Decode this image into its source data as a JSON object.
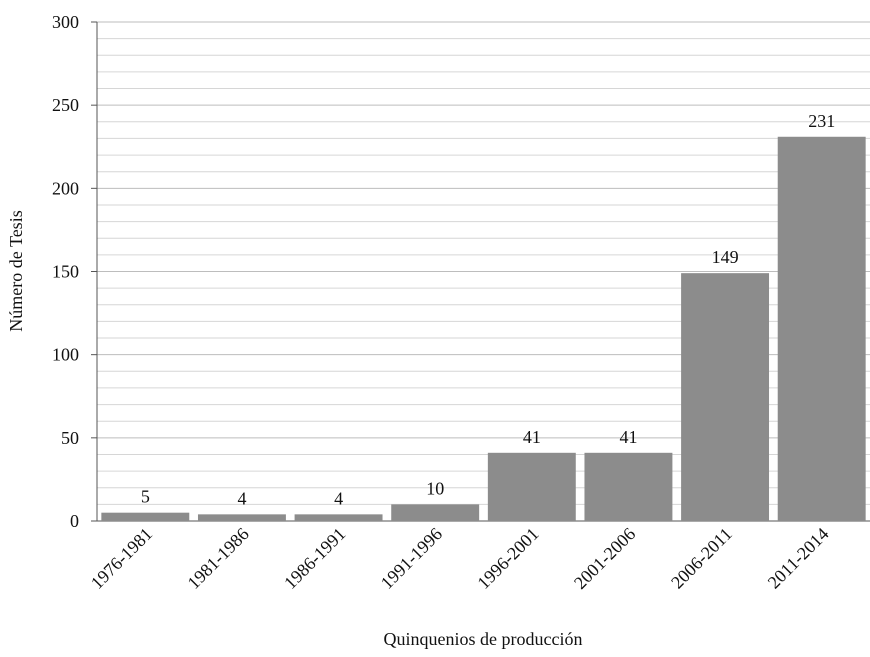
{
  "chart_data": {
    "type": "bar",
    "x_label": "Quinquenios de producción",
    "y_label": "Número de Tesis",
    "categories": [
      "1976-1981",
      "1981-1986",
      "1986-1991",
      "1991-1996",
      "1996-2001",
      "2001-2006",
      "2006-2011",
      "2011-2014"
    ],
    "values": [
      5,
      4,
      4,
      10,
      41,
      41,
      149,
      231
    ],
    "color": "#8c8c8c",
    "ylim": [
      0,
      300
    ],
    "yticks": [
      0,
      50,
      100,
      150,
      200,
      250,
      300
    ],
    "grid": true
  }
}
